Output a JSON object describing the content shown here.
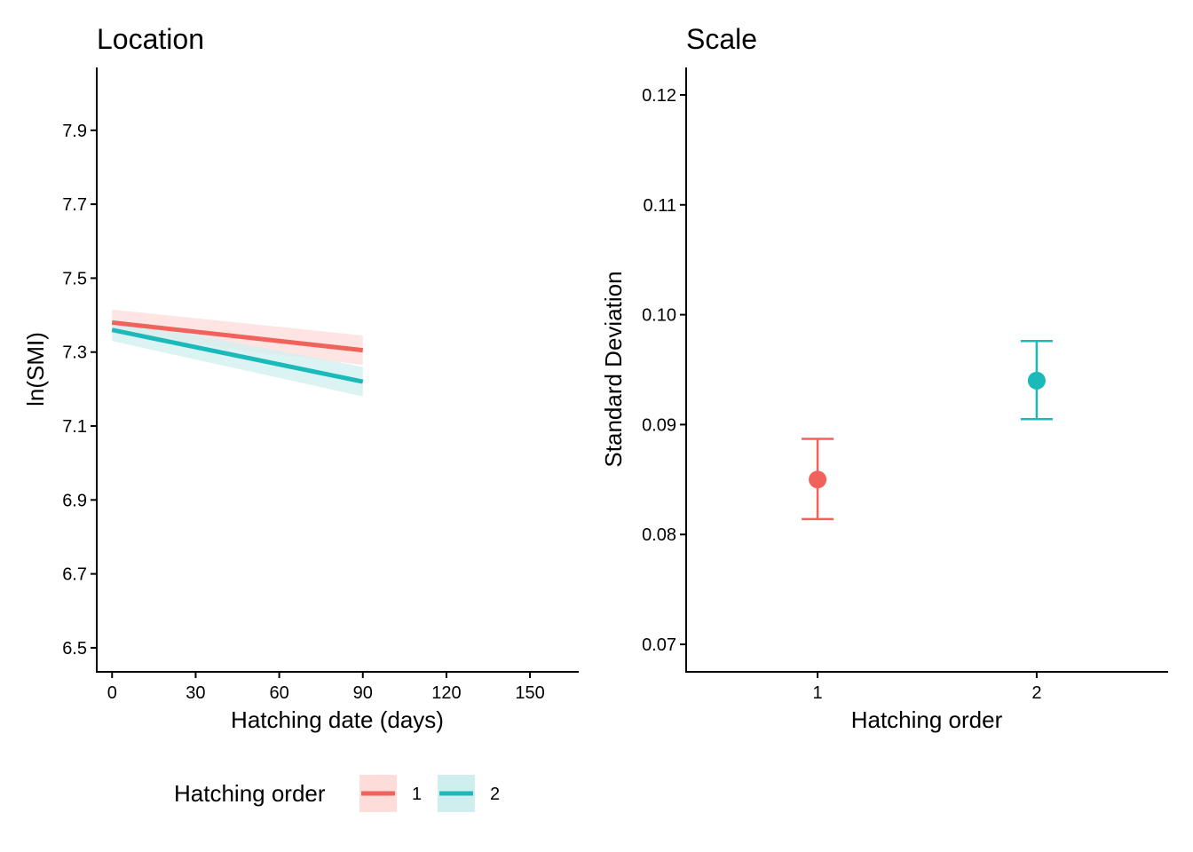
{
  "chart_data": [
    {
      "type": "line",
      "title": "Location",
      "xlabel": "Hatching date (days)",
      "ylabel": "ln(SMI)",
      "xlim": [
        -5.5,
        167.5
      ],
      "ylim": [
        6.435,
        8.07
      ],
      "x_ticks": [
        0,
        30,
        60,
        90,
        120,
        150
      ],
      "x_tick_labels": [
        "0",
        "30",
        "60",
        "90",
        "120",
        "150"
      ],
      "y_ticks": [
        6.5,
        6.7,
        6.9,
        7.1,
        7.3,
        7.5,
        7.7,
        7.9
      ],
      "y_tick_labels": [
        "6.5",
        "6.7",
        "6.9",
        "7.1",
        "7.3",
        "7.5",
        "7.7",
        "7.9"
      ],
      "grid": false,
      "series": [
        {
          "name": "1",
          "color": "#F0625B",
          "ribbon_color": "#FDDCDA",
          "x": [
            0,
            90
          ],
          "y": [
            7.38,
            7.305
          ],
          "lower": [
            7.35,
            7.265
          ],
          "upper": [
            7.415,
            7.345
          ]
        },
        {
          "name": "2",
          "color": "#1CB9BA",
          "ribbon_color": "#CFEFEF",
          "x": [
            0,
            90
          ],
          "y": [
            7.36,
            7.22
          ],
          "lower": [
            7.33,
            7.18
          ],
          "upper": [
            7.39,
            7.26
          ]
        }
      ]
    },
    {
      "type": "scatter",
      "title": "Scale",
      "xlabel": "Hatching order",
      "ylabel": "Standard Deviation",
      "categories": [
        "1",
        "2"
      ],
      "ylim": [
        0.0675,
        0.1225
      ],
      "y_ticks": [
        0.07,
        0.08,
        0.09,
        0.1,
        0.11,
        0.12
      ],
      "y_tick_labels": [
        "0.07",
        "0.08",
        "0.09",
        "0.10",
        "0.11",
        "0.12"
      ],
      "grid": false,
      "points": [
        {
          "category": "1",
          "value": 0.085,
          "lower": 0.0814,
          "upper": 0.0887,
          "color": "#F0625B"
        },
        {
          "category": "2",
          "value": 0.094,
          "lower": 0.0905,
          "upper": 0.0976,
          "color": "#1CB9BA"
        }
      ]
    }
  ],
  "legend": {
    "title": "Hatching order",
    "position": "bottom",
    "items": [
      {
        "label": "1",
        "color": "#F0625B",
        "fill": "#FDDCDA"
      },
      {
        "label": "2",
        "color": "#1CB9BA",
        "fill": "#CFEFEF"
      }
    ]
  }
}
